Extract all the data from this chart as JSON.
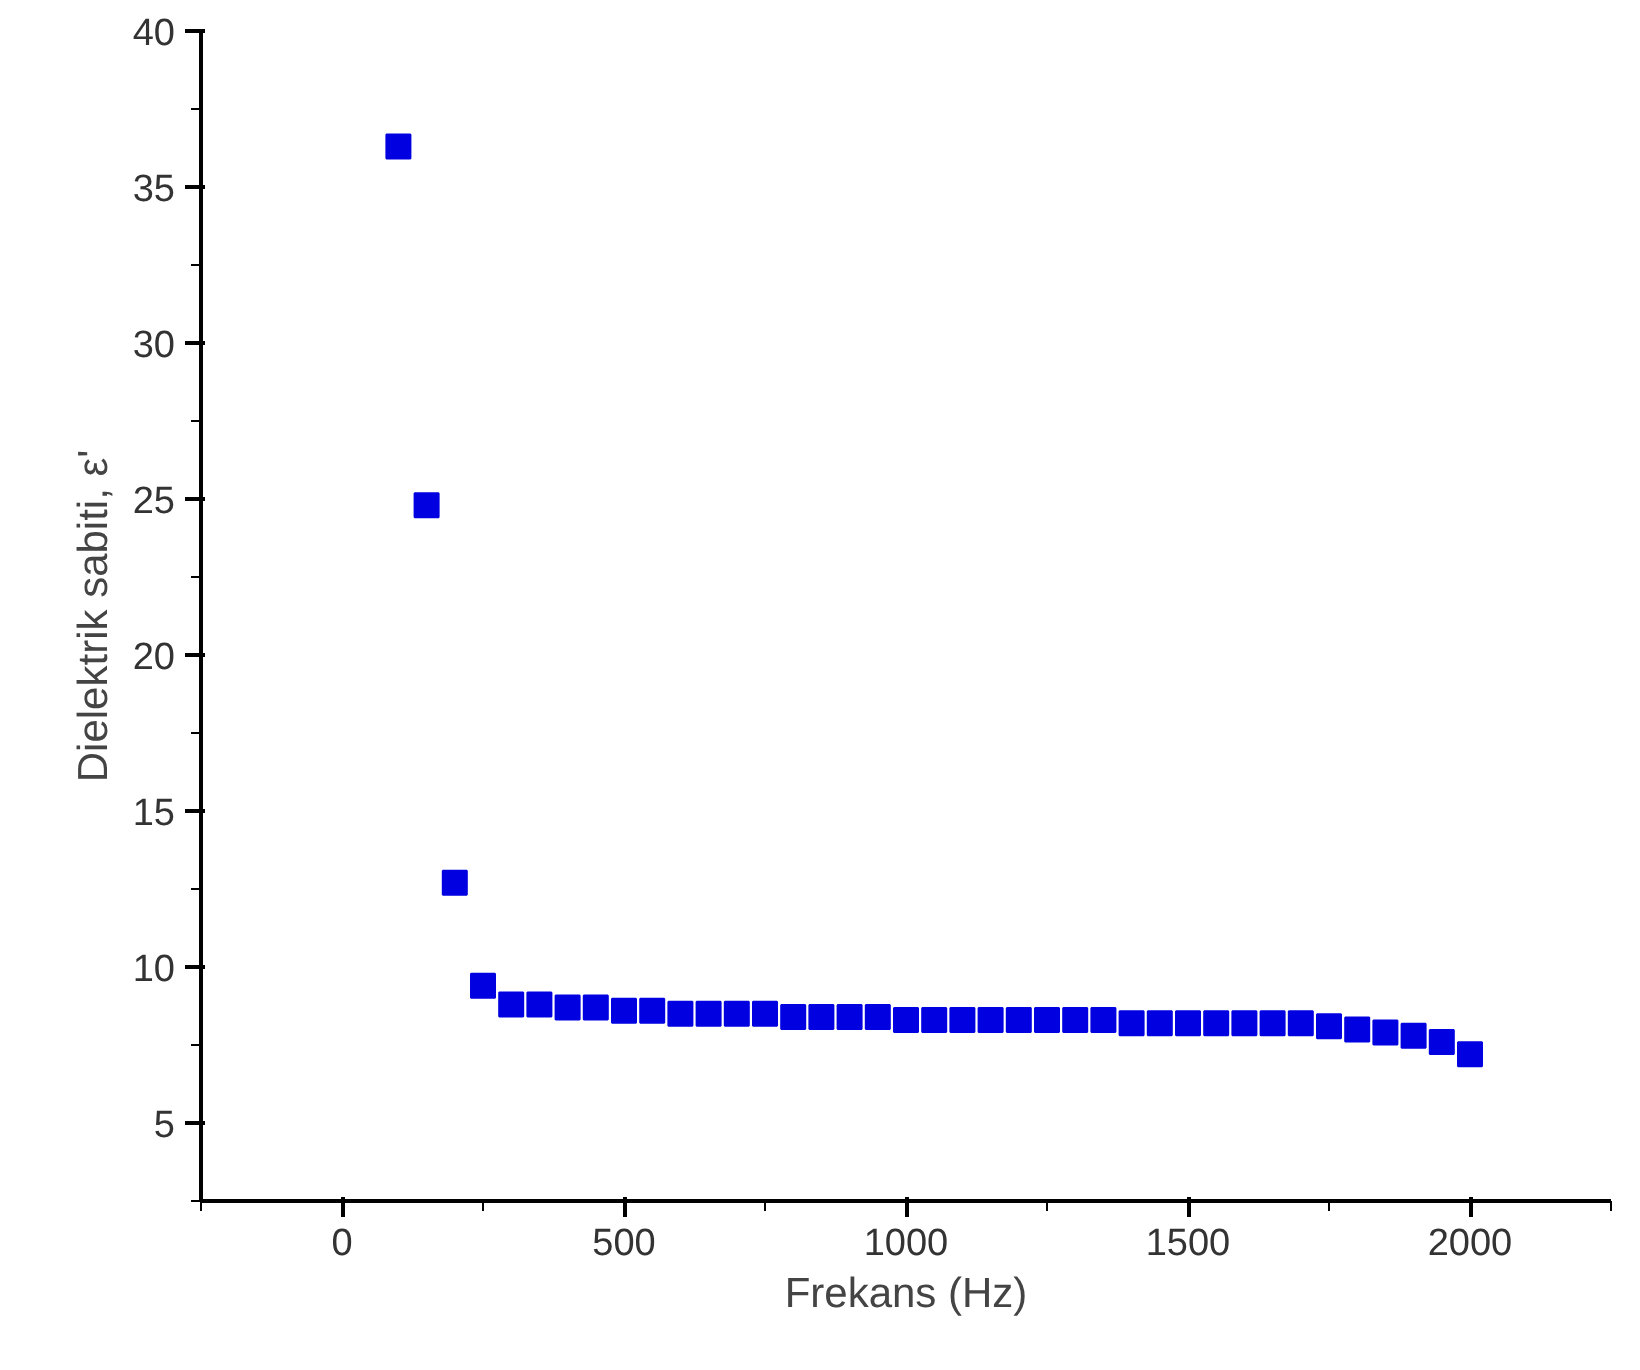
{
  "chart_data": {
    "type": "scatter",
    "xlabel": "Frekans (Hz)",
    "ylabel": "Dielektrik sabiti, ε'",
    "x": [
      100,
      150,
      200,
      250,
      300,
      350,
      400,
      450,
      500,
      550,
      600,
      650,
      700,
      750,
      800,
      850,
      900,
      950,
      1000,
      1050,
      1100,
      1150,
      1200,
      1250,
      1300,
      1350,
      1400,
      1450,
      1500,
      1550,
      1600,
      1650,
      1700,
      1750,
      1800,
      1850,
      1900,
      1950,
      2000
    ],
    "series": [
      {
        "color": "#0000e0",
        "values": [
          36.3,
          24.8,
          12.7,
          9.4,
          8.8,
          8.8,
          8.7,
          8.7,
          8.6,
          8.6,
          8.5,
          8.5,
          8.5,
          8.5,
          8.4,
          8.4,
          8.4,
          8.4,
          8.3,
          8.3,
          8.3,
          8.3,
          8.3,
          8.3,
          8.3,
          8.3,
          8.2,
          8.2,
          8.2,
          8.2,
          8.2,
          8.2,
          8.2,
          8.1,
          8.0,
          7.9,
          7.8,
          7.6,
          7.2
        ]
      }
    ],
    "xlim": [
      -250,
      2250
    ],
    "ylim": [
      2.5,
      40
    ],
    "xticks": [
      0,
      500,
      1000,
      1500,
      2000
    ],
    "yticks": [
      5,
      10,
      15,
      20,
      25,
      30,
      35,
      40
    ],
    "marker": "square",
    "grid": false
  }
}
